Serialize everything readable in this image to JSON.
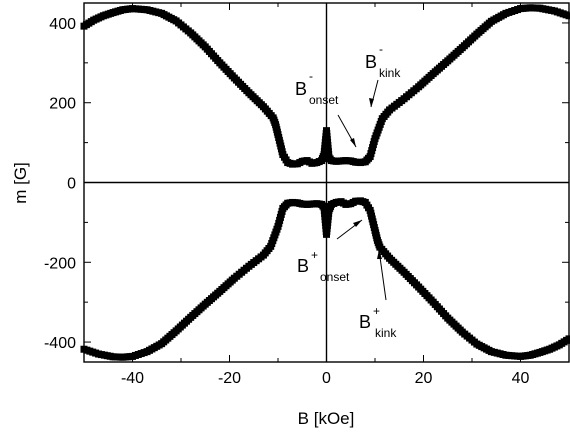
{
  "chart_data": {
    "type": "scatter",
    "xlabel": "B [kOe]",
    "ylabel": "m [G]",
    "xlim": [
      -50,
      50
    ],
    "ylim": [
      -450,
      450
    ],
    "xticks": [
      -40,
      -20,
      0,
      20,
      40
    ],
    "yticks": [
      -400,
      -200,
      0,
      200,
      400
    ],
    "grid": false,
    "marker": "square",
    "color": "#000000",
    "series": [
      {
        "x": [
          -50,
          -47,
          -44,
          -42,
          -40,
          -37,
          -34,
          -31,
          -28,
          -25,
          -22,
          -19,
          -16,
          -13,
          -11.5,
          -10,
          -9,
          -8,
          -7,
          -6,
          -5,
          -4,
          -3,
          -2,
          -1,
          -0.5,
          0,
          0.5,
          1,
          2,
          3,
          4,
          5,
          6,
          7,
          8,
          9,
          10,
          10.5,
          11,
          13,
          16,
          19,
          22,
          25,
          28,
          31,
          34,
          37,
          40,
          42,
          44,
          46,
          48,
          50
        ],
        "y": [
          -418,
          -430,
          -437,
          -438,
          -436,
          -424,
          -404,
          -372,
          -338,
          -305,
          -273,
          -240,
          -210,
          -182,
          -160,
          -110,
          -65,
          -52,
          -50,
          -51,
          -54,
          -55,
          -54,
          -53,
          -55,
          -63,
          -130,
          -70,
          -55,
          -50,
          -48,
          -55,
          -53,
          -47,
          -46,
          -50,
          -70,
          -120,
          -145,
          -162,
          -190,
          -225,
          -262,
          -300,
          -340,
          -375,
          -405,
          -424,
          -433,
          -436,
          -433,
          -426,
          -418,
          -407,
          -392
        ]
      },
      {
        "x": [
          -50,
          -48,
          -46,
          -44,
          -42,
          -40,
          -37,
          -34,
          -31,
          -28,
          -25,
          -22,
          -19,
          -16,
          -13,
          -11,
          -10.5,
          -10,
          -9,
          -8,
          -7,
          -6,
          -5,
          -4,
          -3,
          -2,
          -1,
          -0.5,
          0,
          0.5,
          1,
          2,
          3,
          4,
          5,
          6,
          7,
          8,
          9,
          10,
          11.5,
          13,
          16,
          19,
          22,
          25,
          28,
          31,
          34,
          37,
          40,
          42,
          44,
          47,
          50
        ],
        "y": [
          392,
          407,
          418,
          426,
          433,
          436,
          433,
          424,
          405,
          375,
          340,
          300,
          262,
          225,
          190,
          162,
          145,
          120,
          70,
          50,
          46,
          47,
          53,
          55,
          48,
          50,
          55,
          70,
          130,
          63,
          55,
          53,
          54,
          55,
          54,
          51,
          50,
          52,
          65,
          110,
          160,
          182,
          210,
          240,
          273,
          305,
          338,
          372,
          404,
          424,
          436,
          438,
          437,
          430,
          418
        ]
      }
    ],
    "annotations": [
      {
        "main": "B",
        "sup": "-",
        "sub": "onset"
      },
      {
        "main": "B",
        "sup": "-",
        "sub": "kink"
      },
      {
        "main": "B",
        "sup": "+",
        "sub": "onset"
      },
      {
        "main": "B",
        "sup": "+",
        "sub": "kink"
      }
    ]
  }
}
